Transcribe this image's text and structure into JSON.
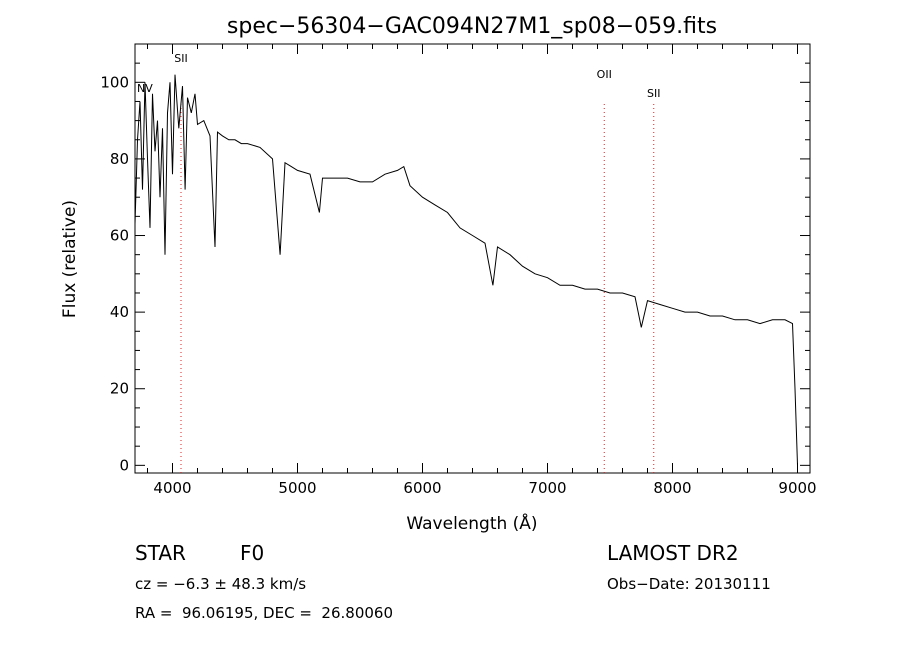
{
  "chart_data": {
    "type": "line",
    "title": "spec−56304−GAC094N27M1_sp08−059.fits",
    "xlabel": "Wavelength (Å)",
    "ylabel": "Flux (relative)",
    "xlim": [
      3700,
      9100
    ],
    "ylim": [
      -2,
      110
    ],
    "xticks": [
      4000,
      5000,
      6000,
      7000,
      8000,
      9000
    ],
    "yticks": [
      0,
      20,
      40,
      60,
      80,
      100
    ],
    "grid": false,
    "series": [
      {
        "x": [
          3700,
          3720,
          3740,
          3760,
          3780,
          3800,
          3820,
          3840,
          3860,
          3880,
          3900,
          3920,
          3940,
          3960,
          3980,
          4000,
          4020,
          4050,
          4080,
          4101,
          4120,
          4150,
          4180,
          4200,
          4250,
          4300,
          4340,
          4360,
          4400,
          4450,
          4500,
          4550,
          4600,
          4700,
          4800,
          4861,
          4900,
          4950,
          5000,
          5100,
          5175,
          5200,
          5300,
          5400,
          5500,
          5600,
          5700,
          5800,
          5850,
          5900,
          6000,
          6100,
          6200,
          6300,
          6400,
          6500,
          6563,
          6600,
          6700,
          6800,
          6900,
          7000,
          7100,
          7200,
          7300,
          7400,
          7500,
          7600,
          7700,
          7750,
          7800,
          7900,
          8000,
          8100,
          8200,
          8300,
          8400,
          8500,
          8600,
          8700,
          8800,
          8900,
          8960,
          8980,
          9000
        ],
        "y": [
          63,
          85,
          95,
          72,
          100,
          80,
          62,
          97,
          82,
          90,
          70,
          88,
          55,
          92,
          100,
          76,
          102,
          88,
          99,
          72,
          96,
          92,
          97,
          89,
          90,
          86,
          57,
          87,
          86,
          85,
          85,
          84,
          84,
          83,
          80,
          55,
          79,
          78,
          77,
          76,
          66,
          75,
          75,
          75,
          74,
          74,
          76,
          77,
          78,
          73,
          70,
          68,
          66,
          62,
          60,
          58,
          47,
          57,
          55,
          52,
          50,
          49,
          47,
          47,
          46,
          46,
          45,
          45,
          44,
          36,
          43,
          42,
          41,
          40,
          40,
          39,
          39,
          38,
          38,
          37,
          38,
          38,
          37,
          20,
          0
        ]
      }
    ],
    "lines": [
      {
        "label": "NV",
        "x": 3700
      },
      {
        "label": "SII",
        "x": 4068
      },
      {
        "label": "OII",
        "x": 7454
      },
      {
        "label": "SII",
        "x": 7850
      }
    ]
  },
  "footer": {
    "object_type": "STAR",
    "subclass": "F0",
    "redshift": "cz = −6.3 ± 48.3 km/s",
    "coords": "RA =  96.06195, DEC =  26.80060",
    "survey": "LAMOST DR2",
    "obs_date": "Obs−Date: 20130111"
  }
}
